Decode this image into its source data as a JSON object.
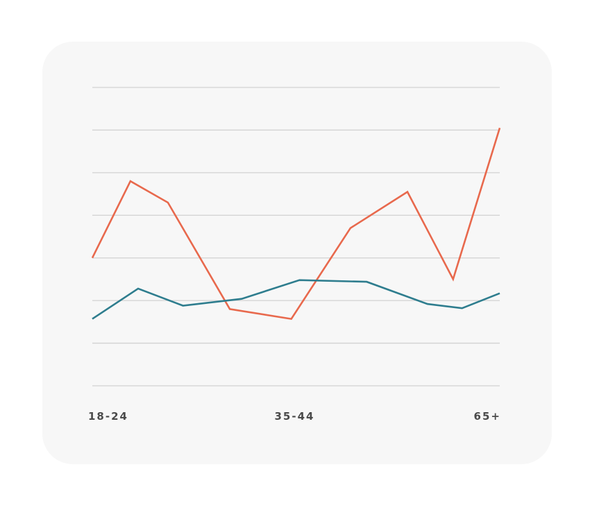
{
  "chart_data": {
    "type": "line",
    "title": "",
    "xlabel": "",
    "ylabel": "",
    "ylim": [
      0,
      7
    ],
    "grid": true,
    "legend": "none",
    "x_tick_labels": [
      "18-24",
      "35-44",
      "65+"
    ],
    "series": [
      {
        "color": "#e8694d",
        "x": [
          0,
          0.0935,
          0.1855,
          0.3375,
          0.4885,
          0.6335,
          0.7735,
          0.8855,
          1
        ],
        "values": [
          3.0,
          4.8,
          4.3,
          1.8,
          1.57,
          3.7,
          4.55,
          2.5,
          6.05
        ]
      },
      {
        "color": "#2e7d8e",
        "x": [
          0,
          0.1125,
          0.2225,
          0.3665,
          0.5085,
          0.6735,
          0.8225,
          0.9075,
          1
        ],
        "values": [
          1.57,
          2.28,
          1.88,
          2.04,
          2.48,
          2.44,
          1.92,
          1.82,
          2.17
        ]
      }
    ]
  }
}
